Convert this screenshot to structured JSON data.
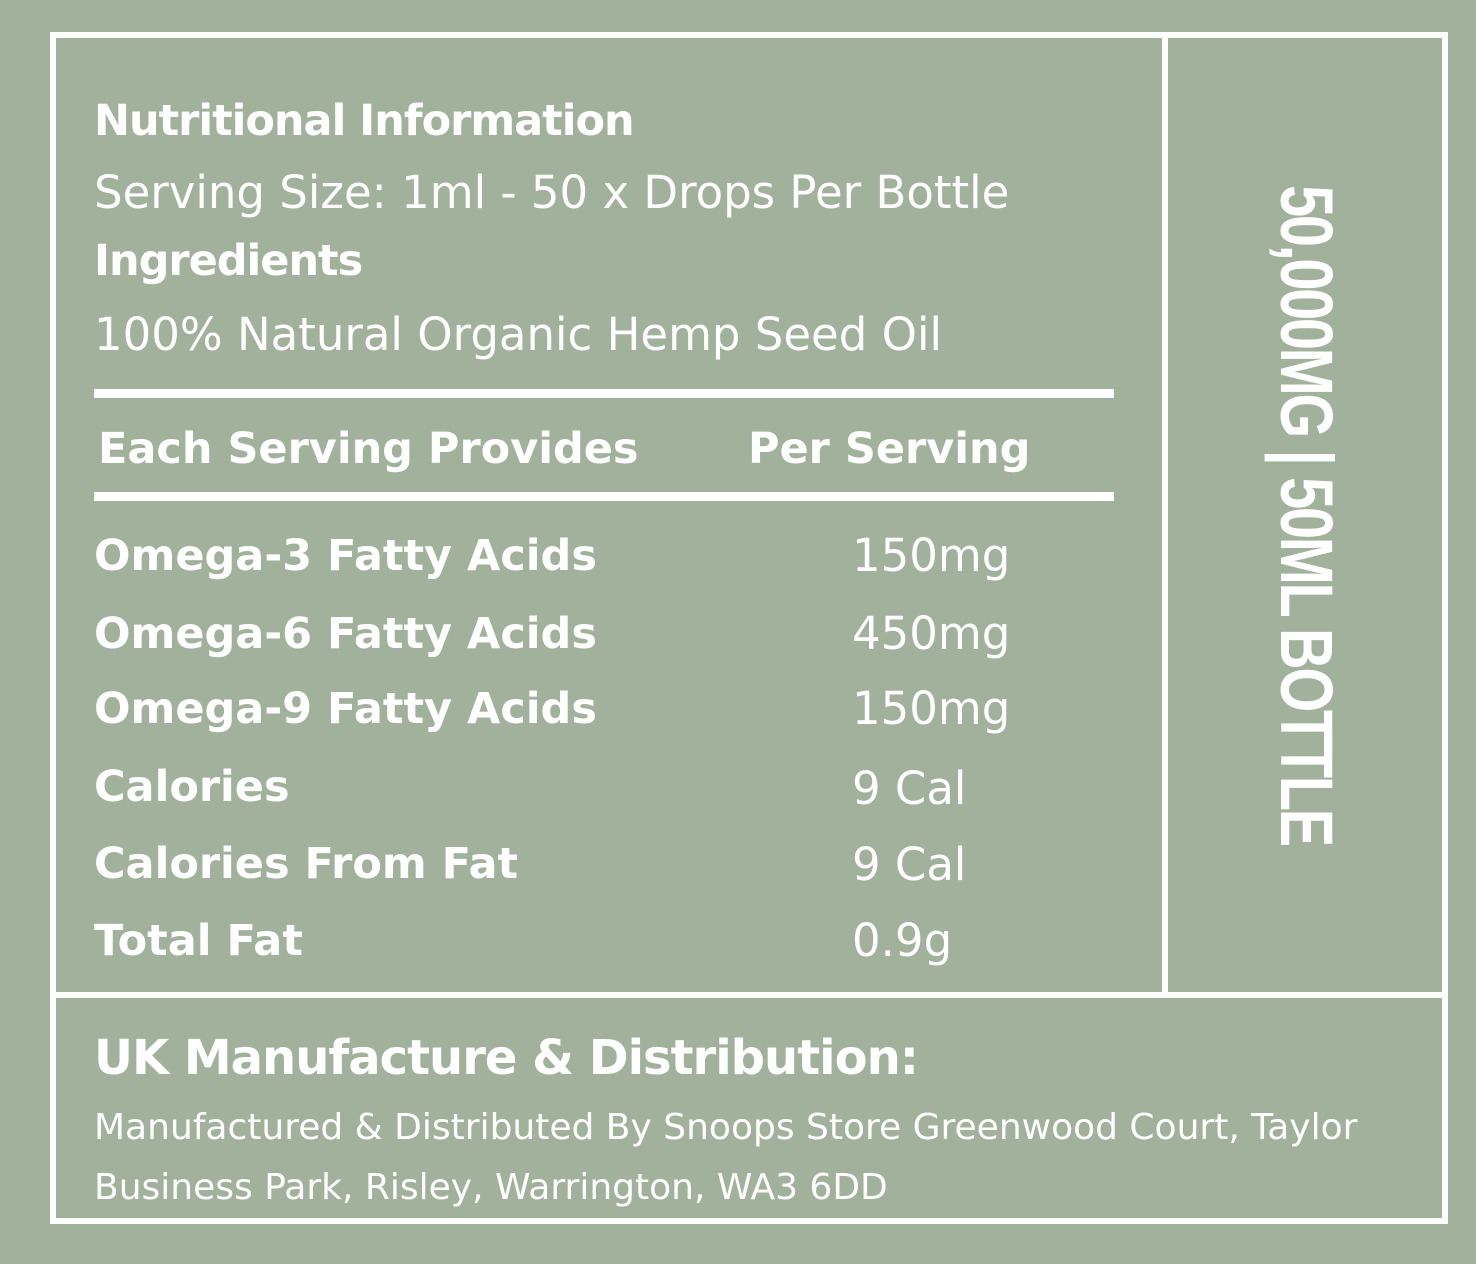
{
  "colors": {
    "background": "#a1b19c",
    "text": "#ffffff",
    "border": "#ffffff"
  },
  "nutrition": {
    "title": "Nutritional Information",
    "serving_size": "Serving Size: 1ml - 50 x Drops Per Bottle",
    "ingredients_heading": "Ingredients",
    "ingredients_value": "100% Natural Organic Hemp Seed Oil"
  },
  "table": {
    "headers": [
      "Each Serving Provides",
      "Per Serving"
    ],
    "rows": [
      {
        "name": "Omega-3 Fatty Acids",
        "value": "150mg"
      },
      {
        "name": "Omega-6 Fatty Acids",
        "value": "450mg"
      },
      {
        "name": "Omega-9 Fatty Acids",
        "value": "150mg"
      },
      {
        "name": "Calories",
        "value": "9 Cal"
      },
      {
        "name": "Calories From Fat",
        "value": "9 Cal"
      },
      {
        "name": "Total Fat",
        "value": "0.9g"
      }
    ]
  },
  "side_panel": {
    "label": "50,000MG | 50ML BOTTLE"
  },
  "manufacturer": {
    "heading": "UK Manufacture & Distribution:",
    "address": "Manufactured & Distributed By Snoops Store Greenwood Court, Taylor Business Park, Risley, Warrington, WA3 6DD"
  }
}
